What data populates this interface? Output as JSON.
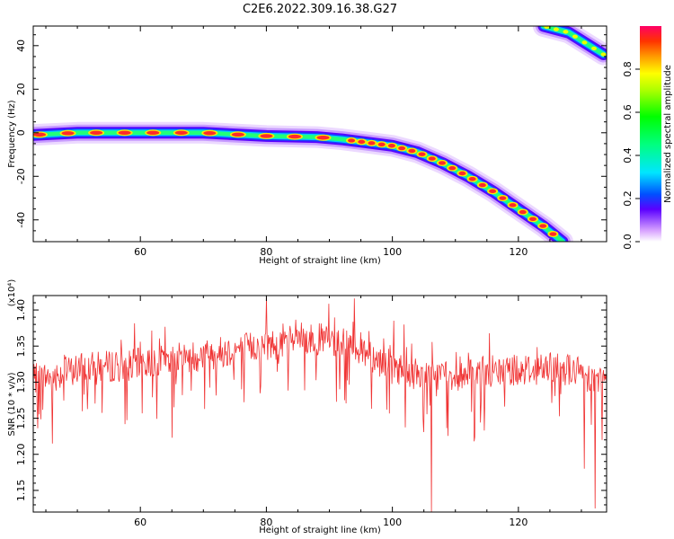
{
  "title": "C2E6.2022.309.16.38.G27",
  "chart_data": [
    {
      "type": "heatmap",
      "xlabel": "Height of straight line (km)",
      "ylabel": "Frequency (Hz)",
      "xlim": [
        43,
        134
      ],
      "ylim": [
        -50,
        49
      ],
      "xticks": [
        60,
        80,
        100,
        120
      ],
      "yticks": [
        40,
        20,
        0,
        -20,
        -40
      ],
      "colorbar": {
        "label": "Normalized spectral amplitude",
        "range": [
          0,
          1
        ],
        "ticks": [
          "0.0",
          "0.2",
          "0.4",
          "0.6",
          "0.8"
        ]
      },
      "ridge_points": [
        [
          43,
          -1
        ],
        [
          50,
          0
        ],
        [
          60,
          0
        ],
        [
          70,
          0
        ],
        [
          80,
          -1.5
        ],
        [
          88,
          -2
        ],
        [
          92,
          -3
        ],
        [
          96,
          -4.5
        ],
        [
          100,
          -6
        ],
        [
          104,
          -9
        ],
        [
          108,
          -14
        ],
        [
          112,
          -20
        ],
        [
          116,
          -27
        ],
        [
          120,
          -35
        ],
        [
          124,
          -43
        ],
        [
          127,
          -50
        ]
      ],
      "aliased_ridge_points": [
        [
          124,
          49
        ],
        [
          128,
          46
        ],
        [
          133.5,
          36
        ]
      ]
    },
    {
      "type": "line",
      "xlabel": "Height of straight line (km)",
      "ylabel": "SNR (10 * v/v)",
      "yscale_label": "(x10⁴)",
      "xlim": [
        43,
        134
      ],
      "ylim": [
        1.12,
        1.42
      ],
      "xticks": [
        60,
        80,
        100,
        120
      ],
      "yticks": [
        "1.40",
        "1.35",
        "1.30",
        "1.25",
        "1.20",
        "1.15"
      ],
      "series": [
        {
          "color": "#f03434",
          "trend": [
            [
              43,
              1.303
            ],
            [
              50,
              1.318
            ],
            [
              60,
              1.325
            ],
            [
              70,
              1.338
            ],
            [
              80,
              1.352
            ],
            [
              88,
              1.36
            ],
            [
              94,
              1.352
            ],
            [
              98,
              1.33
            ],
            [
              103,
              1.312
            ],
            [
              110,
              1.31
            ],
            [
              120,
              1.318
            ],
            [
              128,
              1.318
            ],
            [
              134,
              1.3
            ]
          ],
          "notable_points": [
            [
              46,
              1.215
            ],
            [
              65,
              1.223
            ],
            [
              80,
              1.418
            ],
            [
              94,
              1.416
            ],
            [
              106.2,
              1.12
            ],
            [
              113,
              1.218
            ],
            [
              130.5,
              1.18
            ],
            [
              132.2,
              1.125
            ],
            [
              133.3,
              1.22
            ]
          ]
        }
      ]
    }
  ]
}
